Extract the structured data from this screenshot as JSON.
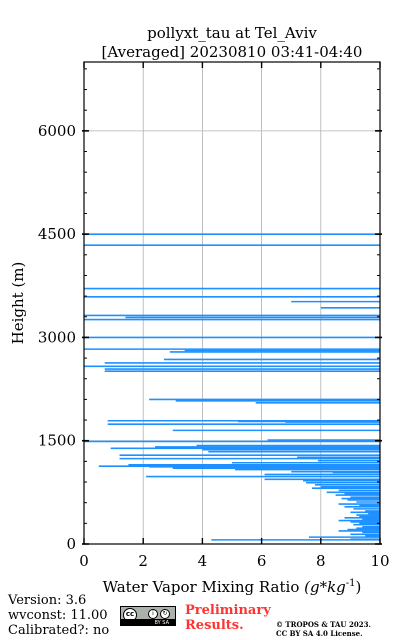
{
  "chart_data": {
    "type": "bar",
    "orientation": "horizontal",
    "title": "pollyxt_tau at Tel_Aviv",
    "subtitle": "[Averaged] 20230810 03:41-04:40",
    "xlabel": "Water Vapor Mixing Ratio ",
    "xlabel_math": "(g*kg",
    "xlabel_sup": "-1",
    "xlabel_close": ")",
    "ylabel": "Height (m)",
    "xlim": [
      0,
      10
    ],
    "ylim": [
      0,
      7000
    ],
    "xticks": [
      0,
      2,
      4,
      6,
      8,
      10
    ],
    "xtick_labels": [
      "0",
      "2",
      "4",
      "6",
      "8",
      "10"
    ],
    "yticks": [
      0,
      1500,
      3000,
      4500,
      6000
    ],
    "ytick_labels": [
      "0",
      "1500",
      "3000",
      "4500",
      "6000"
    ],
    "grid": true,
    "color": "#1e90ff",
    "points": [
      [
        4500,
        0
      ],
      [
        4340,
        0
      ],
      [
        3710,
        0
      ],
      [
        3590,
        0
      ],
      [
        3520,
        7
      ],
      [
        3430,
        8
      ],
      [
        3320,
        0
      ],
      [
        3290,
        1.4
      ],
      [
        3260,
        0
      ],
      [
        3000,
        0
      ],
      [
        2830,
        0
      ],
      [
        2810,
        3.4
      ],
      [
        2790,
        2.9
      ],
      [
        2680,
        2.7
      ],
      [
        2660,
        10
      ],
      [
        2630,
        0.7
      ],
      [
        2580,
        0
      ],
      [
        2540,
        0.7
      ],
      [
        2510,
        0.7
      ],
      [
        2100,
        2.2
      ],
      [
        2080,
        3.1
      ],
      [
        2050,
        5.8
      ],
      [
        2040,
        10
      ],
      [
        1790,
        0.8
      ],
      [
        1780,
        5.2
      ],
      [
        1770,
        6.8
      ],
      [
        1740,
        0.8
      ],
      [
        1650,
        3.0
      ],
      [
        1640,
        10
      ],
      [
        1510,
        6.2
      ],
      [
        1490,
        0
      ],
      [
        1430,
        3.8
      ],
      [
        1410,
        2.4
      ],
      [
        1390,
        0.9
      ],
      [
        1370,
        4.0
      ],
      [
        1340,
        4.2
      ],
      [
        1290,
        1.2
      ],
      [
        1260,
        7.2
      ],
      [
        1240,
        1.2
      ],
      [
        1210,
        7.9
      ],
      [
        1180,
        5.0
      ],
      [
        1150,
        1.5
      ],
      [
        1130,
        0.5
      ],
      [
        1120,
        2.2
      ],
      [
        1100,
        3.0
      ],
      [
        1080,
        5.1
      ],
      [
        1050,
        7.0
      ],
      [
        1040,
        8.4
      ],
      [
        1010,
        6.1
      ],
      [
        980,
        2.1
      ],
      [
        940,
        6.1
      ],
      [
        920,
        7.4
      ],
      [
        890,
        7.5
      ],
      [
        860,
        7.8
      ],
      [
        830,
        8.0
      ],
      [
        810,
        7.7
      ],
      [
        780,
        8.6
      ],
      [
        750,
        8.2
      ],
      [
        730,
        8.8
      ],
      [
        710,
        8.5
      ],
      [
        680,
        9.0
      ],
      [
        660,
        8.7
      ],
      [
        640,
        8.9
      ],
      [
        610,
        9.2
      ],
      [
        580,
        8.6
      ],
      [
        560,
        9.3
      ],
      [
        540,
        8.8
      ],
      [
        510,
        9.1
      ],
      [
        480,
        9.5
      ],
      [
        460,
        9.0
      ],
      [
        440,
        9.6
      ],
      [
        420,
        9.2
      ],
      [
        400,
        9.3
      ],
      [
        380,
        8.8
      ],
      [
        360,
        9.4
      ],
      [
        340,
        8.6
      ],
      [
        320,
        9.0
      ],
      [
        300,
        9.3
      ],
      [
        280,
        9.1
      ],
      [
        250,
        9.4
      ],
      [
        230,
        9.2
      ],
      [
        210,
        8.9
      ],
      [
        190,
        8.6
      ],
      [
        170,
        9.4
      ],
      [
        140,
        9.0
      ],
      [
        120,
        9.5
      ],
      [
        100,
        7.6
      ],
      [
        70,
        9.0
      ],
      [
        60,
        4.3
      ]
    ]
  },
  "footer": {
    "version": "Version: 3.6",
    "wvconst": "wvconst:  11.00",
    "calibrated": "Calibrated?: no",
    "preliminary_line1": "Preliminary",
    "preliminary_line2": "Results.",
    "copyright_line1": "© TROPOS & TAU 2023.",
    "copyright_line2": "CC BY SA 4.0 License.",
    "badge_text": "BY SA"
  }
}
